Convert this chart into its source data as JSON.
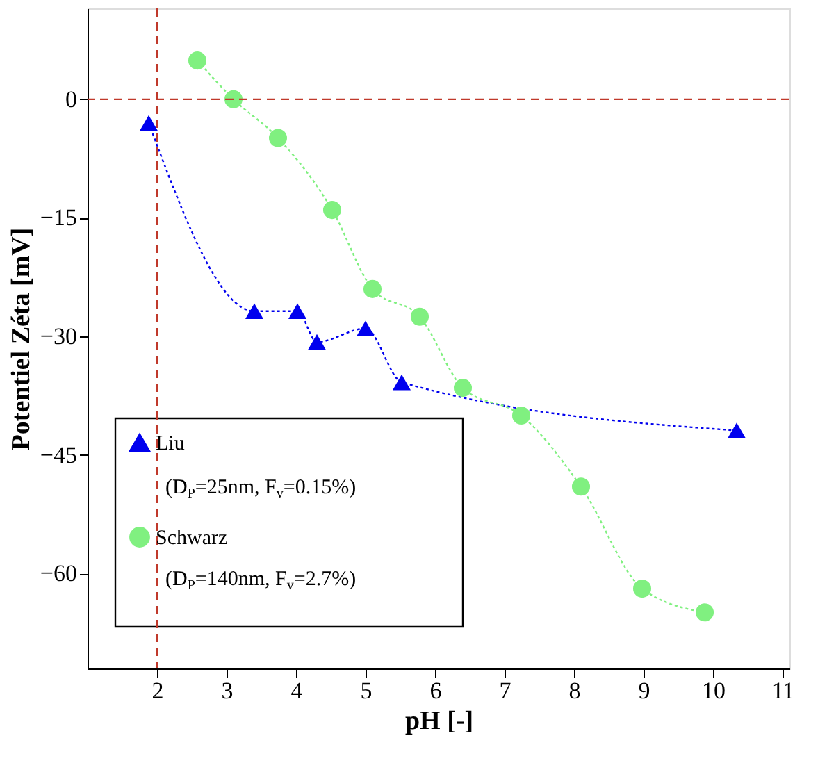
{
  "chart_data": {
    "type": "line",
    "xlabel": "pH [-]",
    "ylabel": "Potentiel Zéta [mV]",
    "xlim": [
      1,
      11.1
    ],
    "ylim": [
      -72,
      11.5
    ],
    "xticks": [
      2,
      3,
      4,
      5,
      6,
      7,
      8,
      9,
      10,
      11
    ],
    "yticks": [
      0,
      -15,
      -30,
      -45,
      -60
    ],
    "grid": false,
    "legend": "bottom left",
    "line_style": "dotted",
    "annotations": [
      "(D$_{P}$=25nm, F$_{v}$=0.15%)",
      "(D$_{P}$=140nm, F$_{v}$=2.7%)"
    ],
    "ref_lines": [
      {
        "axis": "x",
        "value": 2,
        "color": "#c0392b",
        "line_style": "dashed"
      },
      {
        "axis": "y",
        "value": 0,
        "color": "#c0392b",
        "line_style": "dashed"
      }
    ],
    "series": [
      {
        "name": "Liu",
        "color": "#0000ee",
        "marker": "triangle",
        "x": [
          1.88,
          3.4,
          4.02,
          4.3,
          5.0,
          5.52,
          10.34
        ],
        "values": [
          -3,
          -26.8,
          -26.8,
          -30.7,
          -29,
          -35.8,
          -41.9
        ]
      },
      {
        "name": "Schwarz",
        "color": "#80f080",
        "marker": "circle",
        "x": [
          2.58,
          3.1,
          3.74,
          4.52,
          5.1,
          5.78,
          6.4,
          7.24,
          8.1,
          8.98,
          9.88
        ],
        "values": [
          4.9,
          0,
          -4.9,
          -14,
          -24,
          -27.5,
          -36.5,
          -40,
          -49,
          -61.9,
          -64.9
        ]
      }
    ]
  }
}
